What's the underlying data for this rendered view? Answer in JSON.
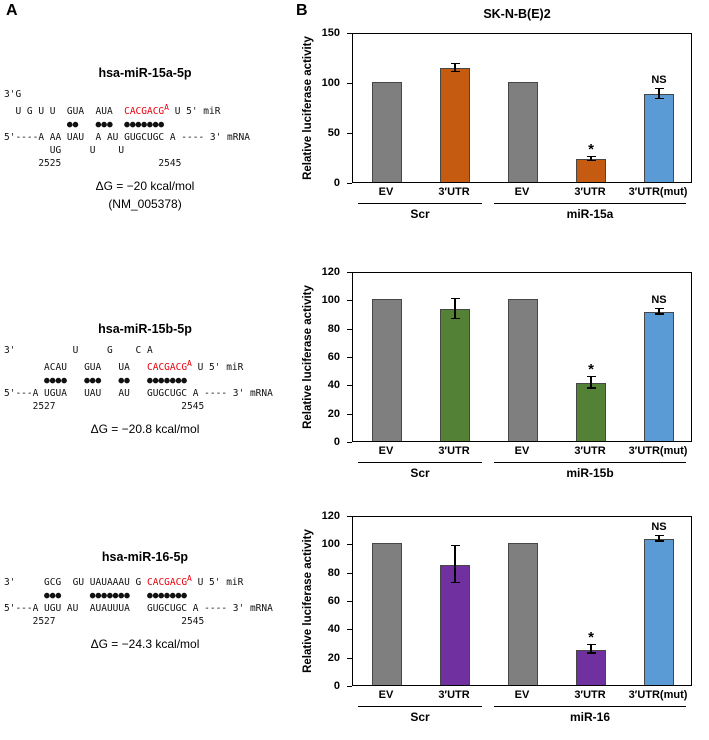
{
  "figure": {
    "panel_a_label": "A",
    "panel_b_label": "B",
    "title": "SK-N-B(E)2"
  },
  "diagrams": [
    {
      "title": "hsa-miR-15a-5p",
      "dg": "ΔG = −20 kcal/mol",
      "note": "(NM_005378)",
      "lines": [
        [
          {
            "t": "3'G"
          }
        ],
        [
          {
            "t": "  U G U U  GUA  AUA  "
          },
          {
            "t": "CACGACG",
            "red": true
          },
          {
            "t": "A",
            "red": true,
            "sup": true
          },
          {
            "t": " U 5' miR"
          }
        ],
        [
          {
            "t": "           ●●   ●●●  ●●●●●●●"
          }
        ],
        [
          {
            "t": "5'----A AA UAU  A AU GUGCUGC A ---- 3' mRNA"
          }
        ],
        [
          {
            "t": "        UG     U    U"
          }
        ],
        [
          {
            "t": "      2525                 2545"
          }
        ]
      ]
    },
    {
      "title": "hsa-miR-15b-5p",
      "dg": "ΔG = −20.8 kcal/mol",
      "note": "",
      "lines": [
        [
          {
            "t": "3'          U     G    C A"
          }
        ],
        [
          {
            "t": "       ACAU   GUA   UA   "
          },
          {
            "t": "CACGACG",
            "red": true
          },
          {
            "t": "A",
            "red": true,
            "sup": true
          },
          {
            "t": " U 5' miR"
          }
        ],
        [
          {
            "t": "       ●●●●   ●●●   ●●   ●●●●●●●"
          }
        ],
        [
          {
            "t": "5'---A UGUA   UAU   AU   GUGCUGC A ---- 3' mRNA"
          }
        ],
        [
          {
            "t": "     2527                      2545"
          }
        ]
      ]
    },
    {
      "title": "hsa-miR-16-5p",
      "dg": "ΔG = −24.3 kcal/mol",
      "note": "",
      "lines": [
        [
          {
            "t": "3'     GCG  GU UAUAAAU G "
          },
          {
            "t": "CACGACG",
            "red": true
          },
          {
            "t": "A",
            "red": true,
            "sup": true
          },
          {
            "t": " U 5' miR"
          }
        ],
        [
          {
            "t": "       ●●●     ●●●●●●●   ●●●●●●●"
          }
        ],
        [
          {
            "t": "5'---A UGU AU  AUAUUUA   GUGCUGC A ---- 3' mRNA"
          }
        ],
        [
          {
            "t": "     2527                      2545"
          }
        ]
      ]
    }
  ],
  "chart_data": [
    {
      "type": "bar",
      "title": "SK-N-B(E)2",
      "ylabel": "Relative luciferase activity",
      "xlabel": "",
      "ylim": [
        0,
        150
      ],
      "yticks": [
        0,
        50,
        100,
        150
      ],
      "categories": [
        "EV",
        "3′UTR",
        "EV",
        "3′UTR",
        "3′UTR(mut)"
      ],
      "values": [
        100,
        114,
        100,
        23,
        88
      ],
      "errors": [
        0,
        4,
        0,
        2,
        5
      ],
      "colors": [
        "#7f7f7f",
        "#c55a11",
        "#7f7f7f",
        "#c55a11",
        "#5b9bd5"
      ],
      "annotations": [
        "",
        "",
        "",
        "*",
        "NS"
      ],
      "groups": [
        {
          "label": "Scr",
          "start": 0,
          "end": 1
        },
        {
          "label": "miR-15a",
          "start": 2,
          "end": 4
        }
      ],
      "grid": false,
      "legend": "none"
    },
    {
      "type": "bar",
      "title": "",
      "ylabel": "Relative luciferase activity",
      "xlabel": "",
      "ylim": [
        0,
        120
      ],
      "yticks": [
        0,
        20,
        40,
        60,
        80,
        100,
        120
      ],
      "categories": [
        "EV",
        "3′UTR",
        "EV",
        "3′UTR",
        "3′UTR(mut)"
      ],
      "values": [
        100,
        93,
        100,
        41,
        91
      ],
      "errors": [
        0,
        7,
        0,
        4,
        2
      ],
      "colors": [
        "#7f7f7f",
        "#538135",
        "#7f7f7f",
        "#538135",
        "#5b9bd5"
      ],
      "annotations": [
        "",
        "",
        "",
        "*",
        "NS"
      ],
      "groups": [
        {
          "label": "Scr",
          "start": 0,
          "end": 1
        },
        {
          "label": "miR-15b",
          "start": 2,
          "end": 4
        }
      ],
      "grid": false,
      "legend": "none"
    },
    {
      "type": "bar",
      "title": "",
      "ylabel": "Relative luciferase activity",
      "xlabel": "",
      "ylim": [
        0,
        120
      ],
      "yticks": [
        0,
        20,
        40,
        60,
        80,
        100,
        120
      ],
      "categories": [
        "EV",
        "3′UTR",
        "EV",
        "3′UTR",
        "3′UTR(mut)"
      ],
      "values": [
        100,
        85,
        100,
        25,
        103
      ],
      "errors": [
        0,
        13,
        0,
        3,
        2
      ],
      "colors": [
        "#7f7f7f",
        "#7030a0",
        "#7f7f7f",
        "#7030a0",
        "#5b9bd5"
      ],
      "annotations": [
        "",
        "",
        "",
        "*",
        "NS"
      ],
      "groups": [
        {
          "label": "Scr",
          "start": 0,
          "end": 1
        },
        {
          "label": "miR-16",
          "start": 2,
          "end": 4
        }
      ],
      "grid": false,
      "legend": "none"
    }
  ]
}
